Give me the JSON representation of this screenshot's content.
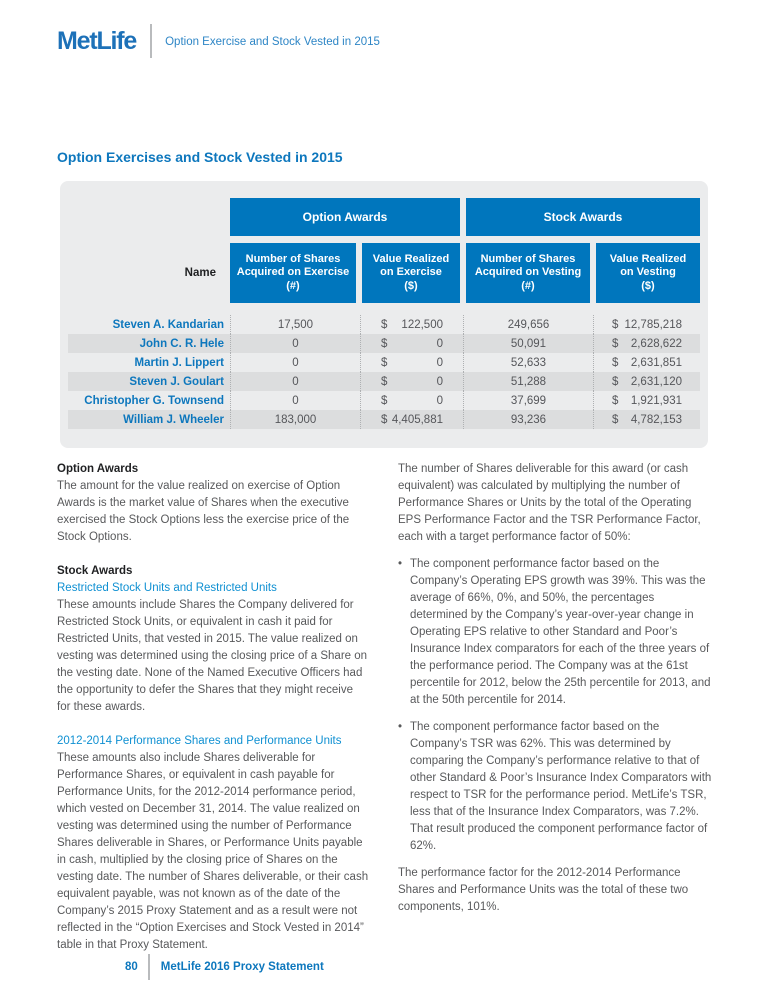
{
  "header": {
    "logo": "MetLife",
    "running_title": "Option Exercise and Stock Vested in 2015"
  },
  "section_title": "Option Exercises and Stock Vested in 2015",
  "table": {
    "name_header": "Name",
    "currency_symbol": "$",
    "group_headers": {
      "option_awards": "Option Awards",
      "stock_awards": "Stock Awards"
    },
    "column_headers": {
      "shares_exercise": [
        "Number of Shares",
        "Acquired on Exercise",
        "(#)"
      ],
      "value_exercise": [
        "Value Realized",
        "on Exercise",
        "($)"
      ],
      "shares_vesting": [
        "Number of Shares",
        "Acquired on Vesting",
        "(#)"
      ],
      "value_vesting": [
        "Value Realized",
        "on Vesting",
        "($)"
      ]
    },
    "rows": [
      {
        "name": "Steven A. Kandarian",
        "shares_exercise": "17,500",
        "value_exercise": "122,500",
        "shares_vesting": "249,656",
        "value_vesting": "12,785,218"
      },
      {
        "name": "John C. R. Hele",
        "shares_exercise": "0",
        "value_exercise": "0",
        "shares_vesting": "50,091",
        "value_vesting": "2,628,622"
      },
      {
        "name": "Martin J. Lippert",
        "shares_exercise": "0",
        "value_exercise": "0",
        "shares_vesting": "52,633",
        "value_vesting": "2,631,851"
      },
      {
        "name": "Steven J. Goulart",
        "shares_exercise": "0",
        "value_exercise": "0",
        "shares_vesting": "51,288",
        "value_vesting": "2,631,120"
      },
      {
        "name": "Christopher G. Townsend",
        "shares_exercise": "0",
        "value_exercise": "0",
        "shares_vesting": "37,699",
        "value_vesting": "1,921,931"
      },
      {
        "name": "William J. Wheeler",
        "shares_exercise": "183,000",
        "value_exercise": "4,405,881",
        "shares_vesting": "93,236",
        "value_vesting": "4,782,153"
      }
    ]
  },
  "left_column": {
    "option_awards_heading": "Option Awards",
    "option_awards_body": "The amount for the value realized on exercise of Option Awards is the market value of Shares when the executive exercised the Stock Options less the exercise price of the Stock Options.",
    "stock_awards_heading": "Stock Awards",
    "rsu_heading": "Restricted Stock Units and Restricted Units",
    "rsu_body": "These amounts include Shares the Company delivered for Restricted Stock Units, or equivalent in cash it paid for Restricted Units, that vested in 2015. The value realized on vesting was determined using the closing price of a Share on the vesting date. None of the Named Executive Officers had the opportunity to defer the Shares that they might receive for these awards.",
    "perf_heading": "2012-2014 Performance Shares and Performance Units",
    "perf_body": "These amounts also include Shares deliverable for Performance Shares, or equivalent in cash payable for Performance Units, for the 2012-2014 performance period, which vested on December 31, 2014. The value realized on vesting was determined using the number of Performance Shares deliverable in Shares, or Performance Units payable in cash, multiplied by the closing price of Shares on the vesting date. The number of Shares deliverable, or their cash equivalent payable, was not known as of the date of the Company’s 2015 Proxy Statement and as a result were not reflected in the “Option Exercises and Stock Vested in 2014” table in that Proxy Statement."
  },
  "right_column": {
    "intro": "The number of Shares deliverable for this award (or cash equivalent) was calculated by multiplying the number of Performance Shares or Units by the total of the Operating EPS Performance Factor and the TSR Performance Factor, each with a target performance factor of 50%:",
    "bullet_glyph": "•",
    "bullets": [
      "The component performance factor based on the Company’s Operating EPS growth was 39%. This was the average of 66%, 0%, and 50%, the percentages determined by the Company’s year-over-year change in Operating EPS relative to other Standard and Poor’s Insurance Index comparators for each of the three years of the performance period. The Company was at the 61st percentile for 2012, below the 25th percentile for 2013, and at the 50th percentile for 2014.",
      "The component performance factor based on the Company’s TSR was 62%. This was determined by comparing the Company’s performance relative to that of other Standard & Poor’s Insurance Index Comparators with respect to TSR for the performance period. MetLife’s TSR, less that of the Insurance Index Comparators, was 7.2%. That result produced the component performance factor of 62%."
    ],
    "closing": "The performance factor for the 2012-2014 Performance Shares and Performance Units was the total of these two components, 101%."
  },
  "footer": {
    "page_number": "80",
    "label": "MetLife 2016 Proxy Statement"
  },
  "colors": {
    "brand_blue": "#1d71b8",
    "table_header_blue": "#0076bd",
    "link_light_blue": "#0f90d2",
    "panel_gray": "#ebeced",
    "row_stripe_gray": "#dcddde",
    "body_text_gray": "#58595b"
  }
}
